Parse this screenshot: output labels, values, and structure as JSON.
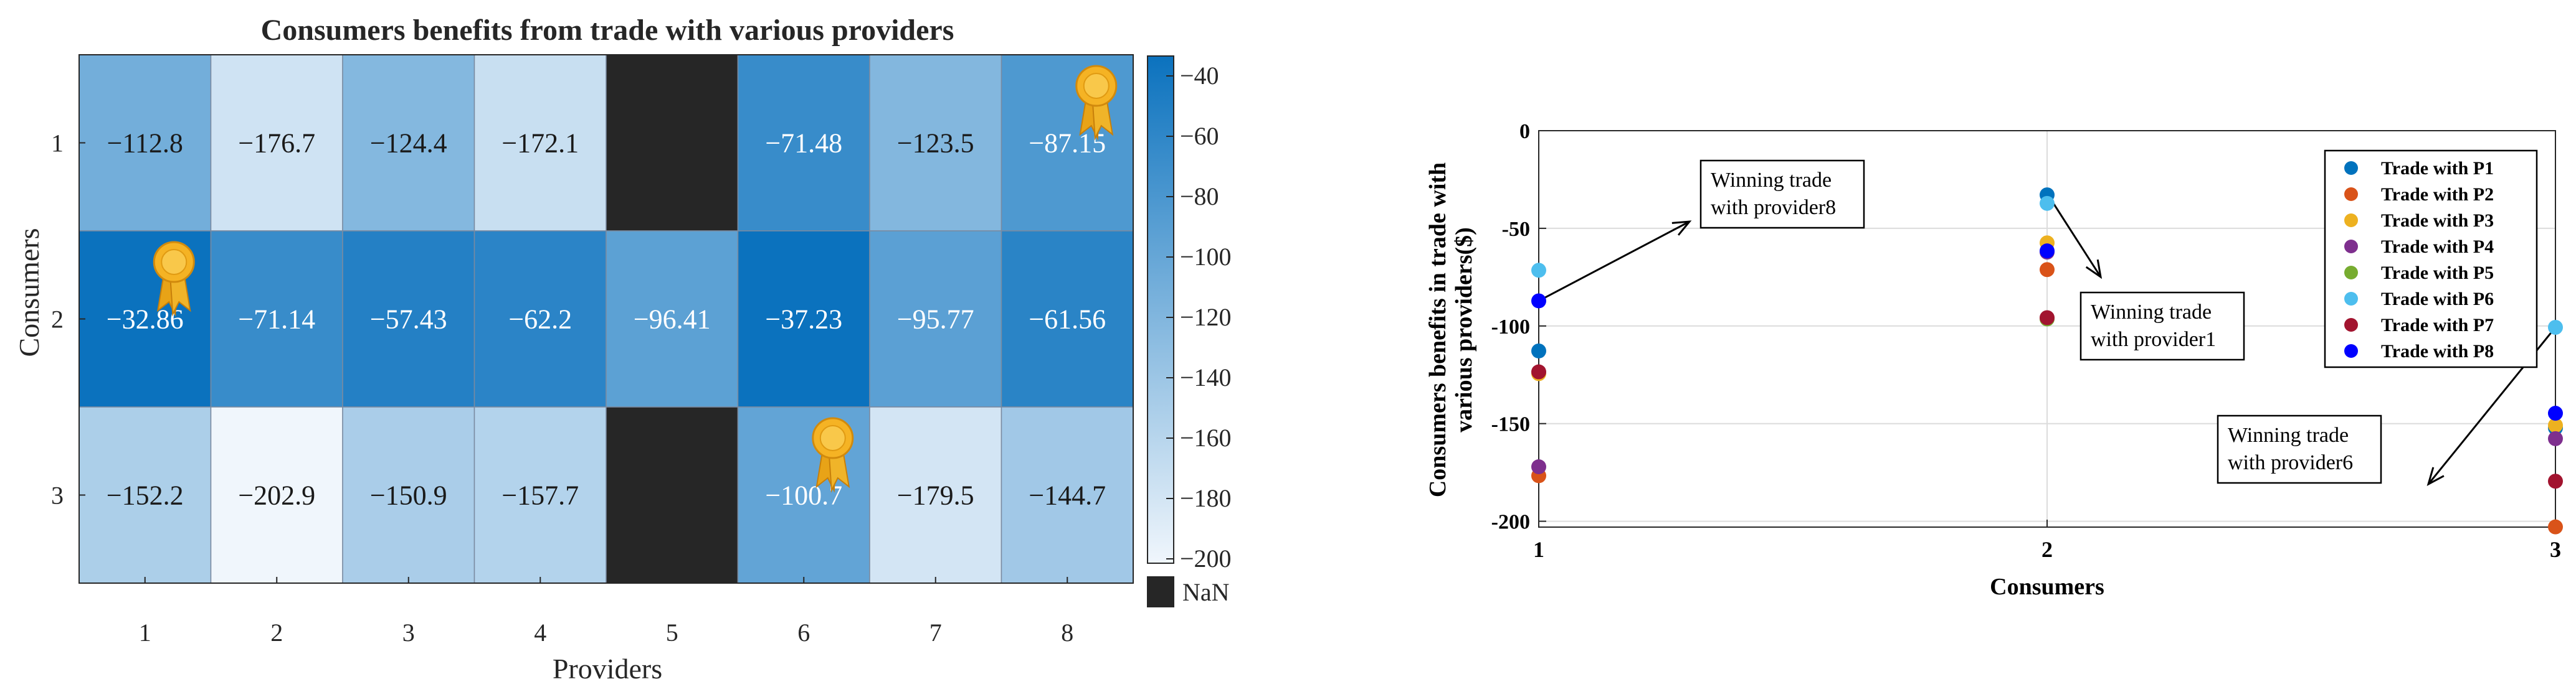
{
  "chart_data": [
    {
      "type": "heatmap",
      "title": "Consumers benefits from trade with various providers",
      "xlabel": "Providers",
      "ylabel": "Consumers",
      "x_categories": [
        "1",
        "2",
        "3",
        "4",
        "5",
        "6",
        "7",
        "8"
      ],
      "y_categories": [
        "1",
        "2",
        "3"
      ],
      "values": [
        [
          -112.8,
          -176.7,
          -124.4,
          -172.1,
          null,
          -71.48,
          -123.5,
          -87.15
        ],
        [
          -32.86,
          -71.14,
          -57.43,
          -62.2,
          -96.41,
          -37.23,
          -95.77,
          -61.56
        ],
        [
          -152.2,
          -202.9,
          -150.9,
          -157.7,
          null,
          -100.7,
          -179.5,
          -144.7
        ]
      ],
      "labels": [
        [
          "−112.8",
          "−176.7",
          "−124.4",
          "−172.1",
          "",
          "−71.48",
          "−123.5",
          "−87.15"
        ],
        [
          "−32.86",
          "−71.14",
          "−57.43",
          "−62.2",
          "−96.41",
          "−37.23",
          "−95.77",
          "−61.56"
        ],
        [
          "−152.2",
          "−202.9",
          "−150.9",
          "−157.7",
          "",
          "−100.7",
          "−179.5",
          "−144.7"
        ]
      ],
      "winners": [
        {
          "row": 1,
          "col": 8
        },
        {
          "row": 2,
          "col": 1
        },
        {
          "row": 3,
          "col": 6
        }
      ],
      "colorbar": {
        "min": -200,
        "max": -40,
        "ticks": [
          -40,
          -60,
          -80,
          -100,
          -120,
          -140,
          -160,
          -180,
          -200
        ],
        "tick_labels": [
          "−40",
          "−60",
          "−80",
          "−100",
          "−120",
          "−140",
          "−160",
          "−180",
          "−200"
        ],
        "low_color": "#f0f6fc",
        "high_color": "#0b72be"
      },
      "nan_label": "NaN",
      "nan_color": "#262626"
    },
    {
      "type": "scatter",
      "xlabel": "Consumers",
      "ylabel_lines": [
        "Consumers benefits in trade with",
        "various providers($)"
      ],
      "xlim": [
        1,
        3
      ],
      "ylim": [
        -203,
        0
      ],
      "x_ticks": [
        1,
        2,
        3
      ],
      "y_ticks": [
        0,
        -50,
        -100,
        -150,
        -200
      ],
      "grid": true,
      "legend_position": "top-right",
      "x": [
        1,
        2,
        3
      ],
      "series": [
        {
          "name": "Trade with P1",
          "color": "#0072bd",
          "values": [
            -112.8,
            -32.86,
            -152.2
          ]
        },
        {
          "name": "Trade with P2",
          "color": "#d95319",
          "values": [
            -176.7,
            -71.14,
            -202.9
          ]
        },
        {
          "name": "Trade with P3",
          "color": "#edb120",
          "values": [
            -124.4,
            -57.43,
            -150.9
          ]
        },
        {
          "name": "Trade with P4",
          "color": "#7e2f8e",
          "values": [
            -172.1,
            -62.2,
            -157.7
          ]
        },
        {
          "name": "Trade with P5",
          "color": "#77ac30",
          "values": [
            null,
            -96.41,
            null
          ]
        },
        {
          "name": "Trade with P6",
          "color": "#4dbeee",
          "values": [
            -71.48,
            -37.23,
            -100.7
          ]
        },
        {
          "name": "Trade with P7",
          "color": "#a2142f",
          "values": [
            -123.5,
            -95.77,
            -179.5
          ]
        },
        {
          "name": "Trade with P8",
          "color": "#0000ff",
          "values": [
            -87.15,
            -61.56,
            -144.7
          ]
        }
      ],
      "annotations": [
        {
          "lines": [
            "Winning trade",
            "with provider8"
          ],
          "target": [
            1,
            -87.15
          ]
        },
        {
          "lines": [
            "Winning trade",
            "with provider1"
          ],
          "target": [
            2,
            -32.86
          ]
        },
        {
          "lines": [
            "Winning trade",
            "with provider6"
          ],
          "target": [
            3,
            -100.7
          ]
        }
      ]
    }
  ]
}
